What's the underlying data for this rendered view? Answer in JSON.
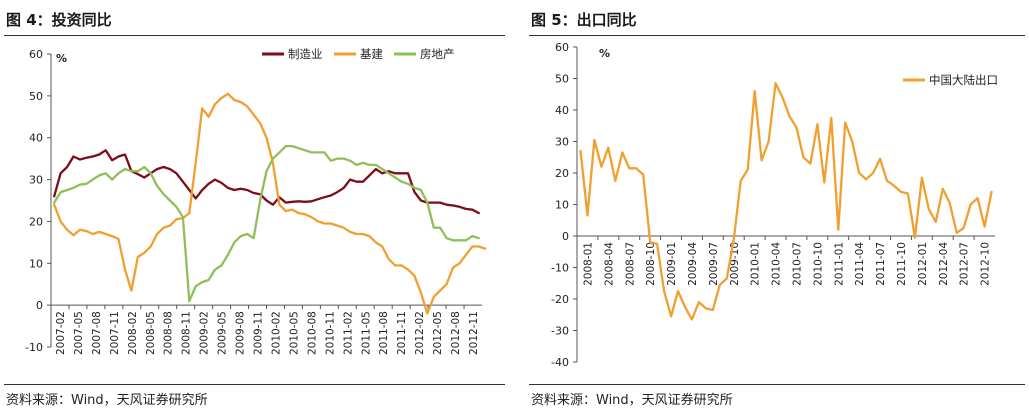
{
  "panels": {
    "left": {
      "title": "图 4：投资同比",
      "source": "资料来源：Wind，天风证券研究所"
    },
    "right": {
      "title": "图 5：出口同比",
      "source": "资料来源：Wind，天风证券研究所"
    }
  },
  "chart_data": [
    {
      "type": "line",
      "title": "",
      "ylabel": "%",
      "ylim": [
        -10,
        60
      ],
      "yticks": [
        -10,
        0,
        10,
        20,
        30,
        40,
        50,
        60
      ],
      "xticklabels": [
        "2007-02",
        "2007-05",
        "2007-08",
        "2007-11",
        "2008-02",
        "2008-05",
        "2008-08",
        "2008-11",
        "2009-02",
        "2009-05",
        "2009-08",
        "2009-11",
        "2010-02",
        "2010-05",
        "2010-08",
        "2010-11",
        "2011-02",
        "2011-05",
        "2011-08",
        "2011-11",
        "2012-02",
        "2012-05",
        "2012-08",
        "2012-11"
      ],
      "legend_position": "top-right",
      "grid": false,
      "series": [
        {
          "name": "制造业",
          "color": "#7b0e17",
          "values": [
            26,
            31.5,
            33,
            35.5,
            34.8,
            35.2,
            35.5,
            36,
            37,
            34.6,
            35.5,
            36,
            32,
            31.3,
            30.5,
            31.5,
            32.5,
            33,
            32.5,
            31.5,
            29.5,
            27.5,
            25.5,
            27.5,
            29,
            30,
            29.2,
            28,
            27.5,
            27.8,
            27.5,
            26.8,
            26.5,
            25,
            24,
            25.8,
            24.5,
            24.7,
            24.8,
            24.7,
            24.8,
            25.3,
            25.8,
            26.2,
            27,
            28,
            30,
            29.5,
            29.5,
            31,
            32.5,
            31.5,
            32,
            31.5,
            31.5,
            31.5,
            27,
            25,
            24.5,
            24.5,
            24.5,
            24,
            23.8,
            23.5,
            23,
            22.8,
            22
          ]
        },
        {
          "name": "基建",
          "color": "#f0a030",
          "values": [
            24,
            20,
            18,
            16.7,
            18,
            17.7,
            17,
            17.5,
            17,
            16.5,
            15.8,
            8.5,
            3.5,
            11.5,
            12.5,
            14,
            17,
            18.5,
            19,
            20.5,
            20.8,
            22,
            34,
            47,
            45,
            48,
            49.5,
            50.5,
            49,
            48.5,
            47.5,
            45.5,
            43.5,
            40,
            34,
            24,
            22.5,
            22.8,
            22,
            21.7,
            21,
            20,
            19.5,
            19.5,
            19,
            18.5,
            17.5,
            17,
            17,
            16.5,
            15,
            14,
            11,
            9.5,
            9.5,
            8.5,
            7,
            3,
            -2,
            2,
            3.5,
            5,
            9,
            10,
            12,
            14,
            14,
            13.5
          ]
        },
        {
          "name": "房地产",
          "color": "#8fbf5a",
          "values": [
            24.5,
            27,
            27.5,
            28,
            28.8,
            29,
            30,
            31,
            31.5,
            30,
            31.5,
            32.5,
            32,
            32,
            33,
            31.5,
            28.5,
            26.5,
            25,
            23.5,
            21,
            1,
            4.5,
            5.5,
            6,
            8.5,
            9.5,
            12,
            15,
            16.5,
            17,
            16,
            25,
            32,
            35,
            36.5,
            38,
            38,
            37.5,
            37,
            36.5,
            36.5,
            36.5,
            34.5,
            35,
            35,
            34.5,
            33.5,
            34,
            33.5,
            33.5,
            32.5,
            31.5,
            30.5,
            29.5,
            29,
            28,
            27.5,
            24.5,
            18.5,
            18.5,
            16,
            15.5,
            15.5,
            15.5,
            16.5,
            16
          ]
        }
      ]
    },
    {
      "type": "line",
      "title": "",
      "ylabel": "%",
      "ylim": [
        -40,
        60
      ],
      "yticks": [
        -40,
        -30,
        -20,
        -10,
        0,
        10,
        20,
        30,
        40,
        50,
        60
      ],
      "xticklabels": [
        "2008-01",
        "2008-04",
        "2008-07",
        "2008-10",
        "2009-01",
        "2009-04",
        "2009-07",
        "2009-10",
        "2010-01",
        "2010-04",
        "2010-07",
        "2010-10",
        "2011-01",
        "2011-04",
        "2011-07",
        "2011-10",
        "2012-01",
        "2012-04",
        "2012-07",
        "2012-10"
      ],
      "legend_position": "top-right",
      "grid": false,
      "series": [
        {
          "name": "中国大陆出口",
          "color": "#f0a030",
          "values": [
            27,
            6.5,
            30.5,
            22,
            28,
            17.5,
            26.5,
            21.5,
            21.5,
            19.5,
            -2,
            -2.5,
            -17.5,
            -25.5,
            -17.5,
            -22.5,
            -26.5,
            -21,
            -23,
            -23.5,
            -15.5,
            -13.5,
            -1,
            17.5,
            21,
            46,
            24,
            30,
            48.5,
            44,
            38,
            34.5,
            25,
            23,
            35.5,
            17,
            37.5,
            2,
            36,
            30,
            20,
            18,
            20,
            24.5,
            17.5,
            16,
            14,
            13.5,
            -0.5,
            18.5,
            8.5,
            4.5,
            15,
            10.5,
            1,
            2.5,
            10,
            12,
            3,
            14
          ]
        }
      ]
    }
  ]
}
